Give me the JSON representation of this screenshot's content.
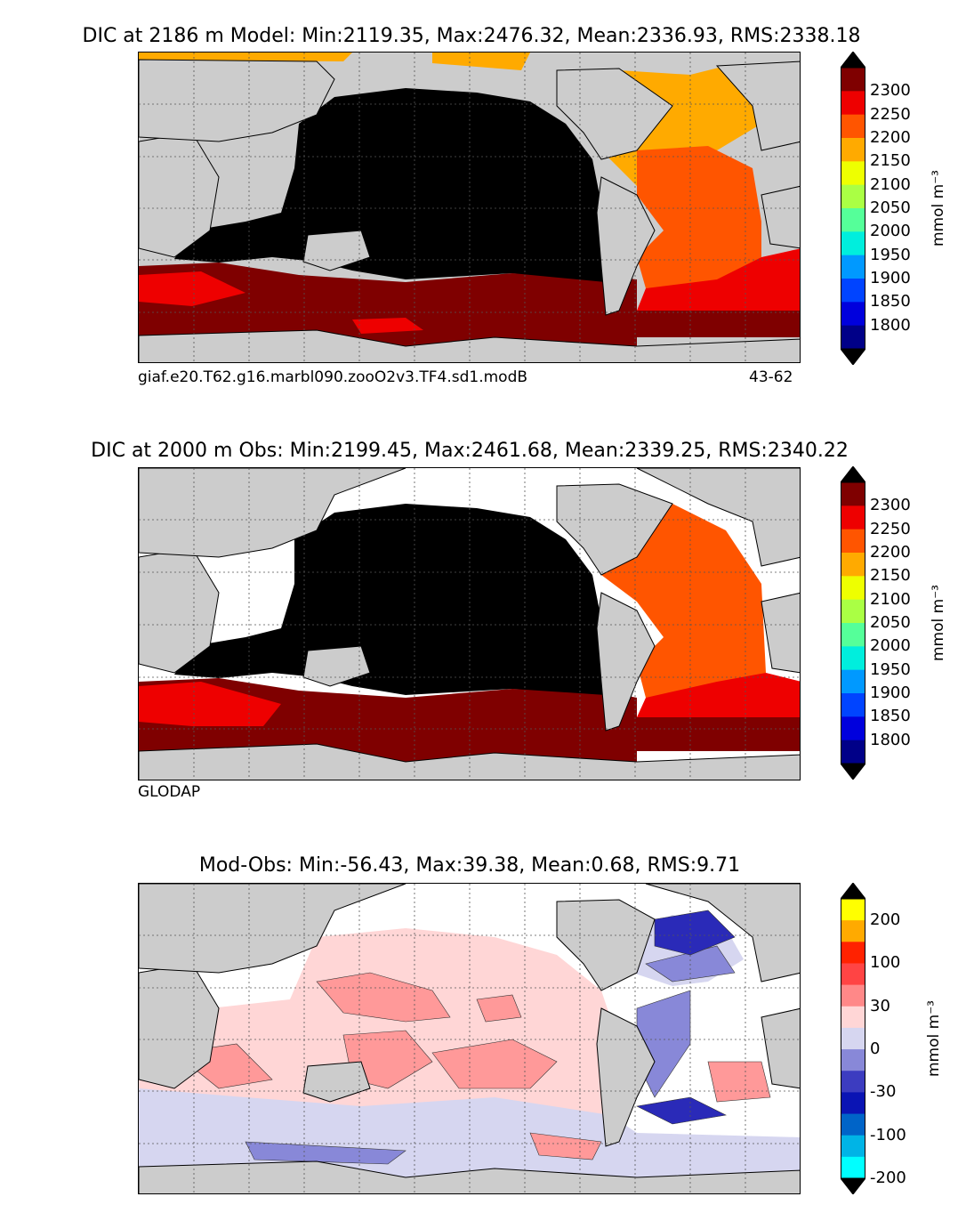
{
  "panels": {
    "model": {
      "title": "DIC at 2186 m Model: Min:2119.35, Max:2476.32, Mean:2336.93, RMS:2338.18",
      "caption_left": "giaf.e20.T62.g16.marbl090.zooO2v3.TF4.sd1.modB",
      "caption_right": "43-62"
    },
    "obs": {
      "title": "DIC at 2000 m Obs: Min:2199.45, Max:2461.68, Mean:2339.25, RMS:2340.22",
      "caption_left": "GLODAP"
    },
    "diff": {
      "title": "Mod-Obs: Min:-56.43, Max:39.38, Mean:0.68, RMS:9.71"
    }
  },
  "colorbars": {
    "dic": {
      "label": "mmol m⁻³",
      "ticks": [
        "2300",
        "2250",
        "2200",
        "2150",
        "2100",
        "2050",
        "2000",
        "1950",
        "1900",
        "1850",
        "1800"
      ],
      "colors": [
        "#7f0000",
        "#ee0000",
        "#ff5500",
        "#ffaa00",
        "#eeff00",
        "#aaff44",
        "#55ff99",
        "#00eedd",
        "#0099ff",
        "#0044ff",
        "#0000dd",
        "#000088"
      ],
      "over": "#000000",
      "under": "#000000"
    },
    "diff": {
      "label": "mmol m⁻³",
      "ticks": [
        "200",
        "100",
        "30",
        "0",
        "-30",
        "-100",
        "-200"
      ],
      "colors": [
        "#ffff00",
        "#ffaa00",
        "#ff2200",
        "#ff4444",
        "#ff8888",
        "#ffd6d6",
        "#d6d6f0",
        "#8888d8",
        "#3c3cc0",
        "#0a14b4",
        "#0064c8",
        "#00b4e6",
        "#00ffff"
      ],
      "over": "#000000",
      "under": "#000000"
    }
  },
  "map_colors": {
    "land": "#cccccc",
    "ocean_black": "#000000",
    "dark_red": "#7f0000",
    "red": "#ee0000",
    "orange": "#ff5500",
    "amber": "#ffaa00",
    "pink": "#ff9999",
    "light_pink": "#ffd6d6",
    "light_blue": "#d6d6f0",
    "mid_blue": "#8888d8",
    "dark_blue": "#2a2ab8"
  }
}
